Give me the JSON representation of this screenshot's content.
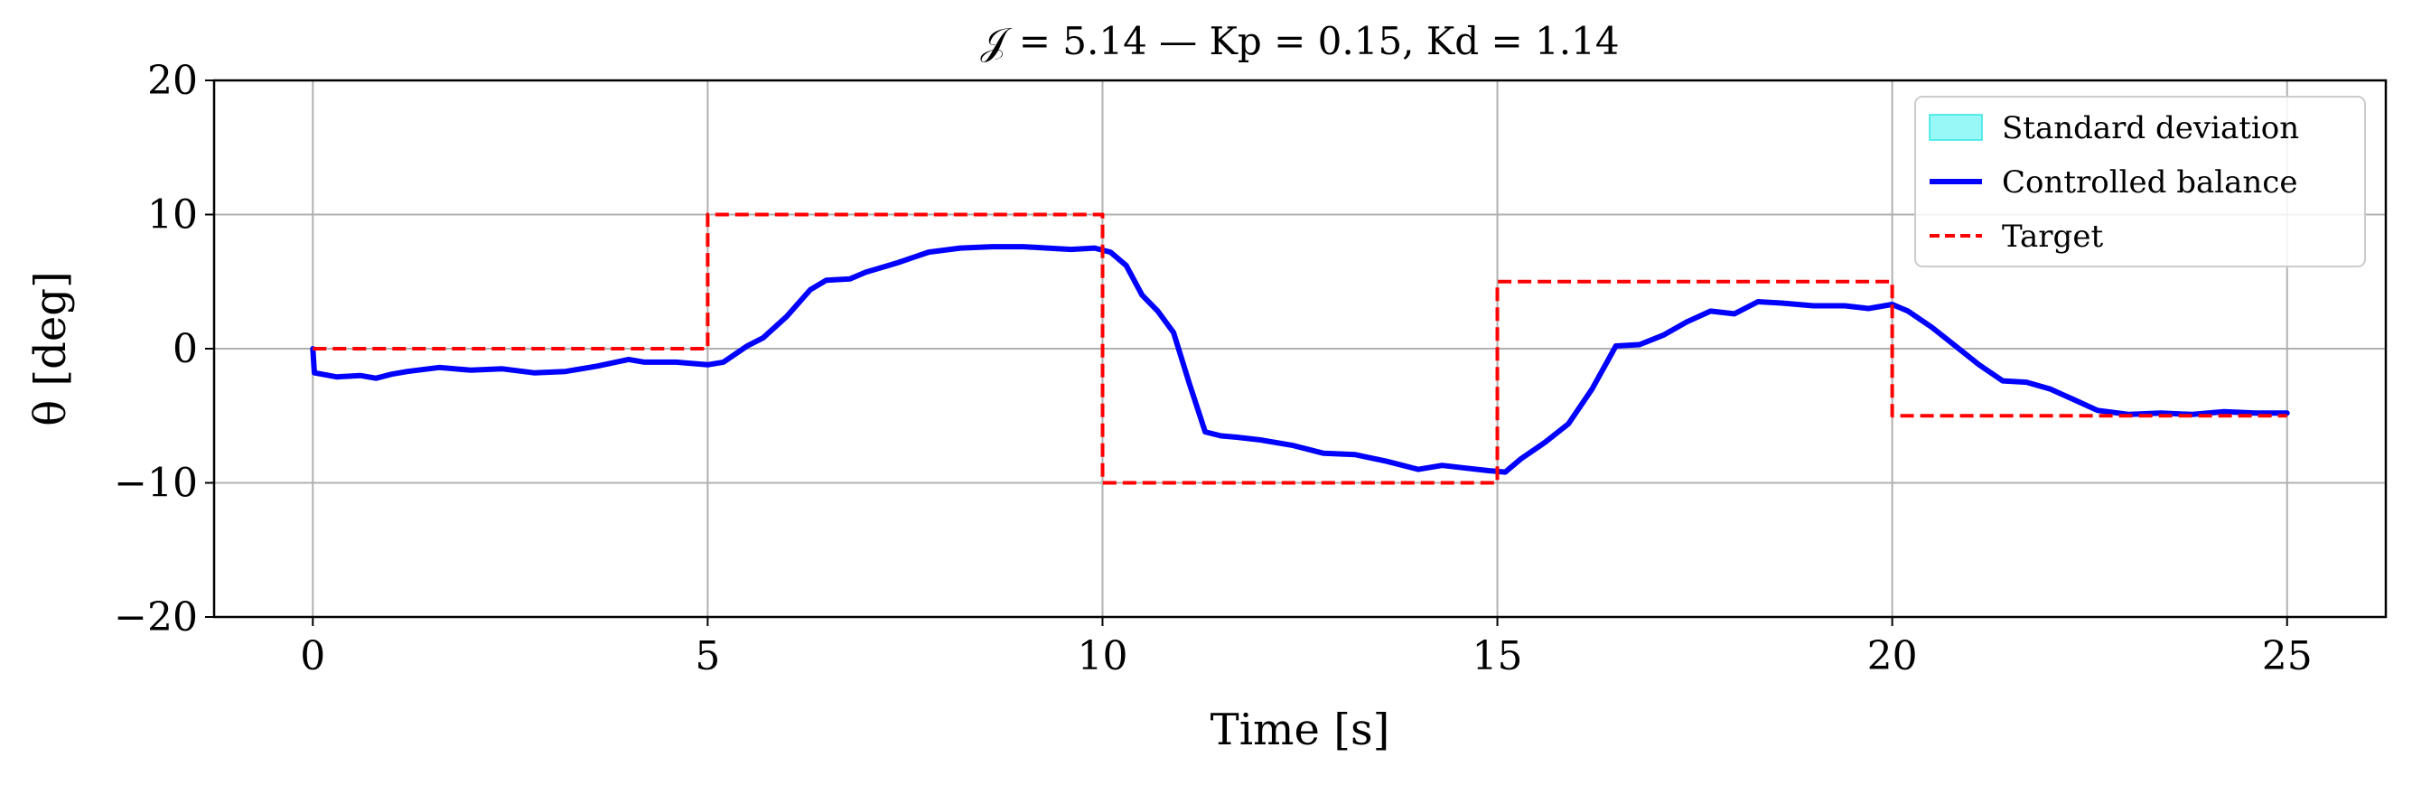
{
  "chart_data": {
    "type": "line",
    "title": "𝒥 = 5.14 — Kp = 0.15, Kd = 1.14",
    "xlabel": "Time [s]",
    "ylabel": "θ [deg]",
    "xlim": [
      -1.25,
      26.25
    ],
    "ylim": [
      -20,
      20
    ],
    "xticks": [
      0,
      5,
      10,
      15,
      20,
      25
    ],
    "yticks": [
      20,
      10,
      0,
      -10,
      -20
    ],
    "xtick_labels": [
      "0",
      "5",
      "10",
      "15",
      "20",
      "25"
    ],
    "ytick_labels": [
      "20",
      "10",
      "0",
      "−10",
      "−20"
    ],
    "grid": true,
    "legend_position": "top-right",
    "series": [
      {
        "name": "Standard deviation",
        "kind": "band",
        "color": "#7ff7f7",
        "x": [],
        "lower": [],
        "upper": []
      },
      {
        "name": "Controlled balance",
        "kind": "line",
        "color": "#0000ff",
        "style": "solid",
        "x": [
          0,
          0.02,
          0.3,
          0.6,
          0.8,
          1.0,
          1.2,
          1.6,
          2.0,
          2.4,
          2.8,
          3.2,
          3.6,
          4.0,
          4.2,
          4.6,
          5.0,
          5.2,
          5.5,
          5.7,
          6.0,
          6.3,
          6.5,
          6.8,
          7.0,
          7.4,
          7.8,
          8.2,
          8.6,
          9.0,
          9.3,
          9.6,
          9.9,
          10.1,
          10.3,
          10.5,
          10.7,
          10.9,
          11.1,
          11.3,
          11.5,
          11.7,
          12.0,
          12.4,
          12.8,
          13.2,
          13.6,
          14.0,
          14.3,
          14.6,
          14.9,
          15.1,
          15.3,
          15.6,
          15.9,
          16.2,
          16.5,
          16.8,
          17.1,
          17.4,
          17.7,
          18.0,
          18.3,
          18.6,
          19.0,
          19.4,
          19.7,
          20.0,
          20.2,
          20.5,
          20.8,
          21.1,
          21.4,
          21.7,
          22.0,
          22.3,
          22.6,
          23.0,
          23.4,
          23.8,
          24.2,
          24.6,
          25.0
        ],
        "y": [
          0,
          -1.8,
          -2.1,
          -2.0,
          -2.2,
          -1.9,
          -1.7,
          -1.4,
          -1.6,
          -1.5,
          -1.8,
          -1.7,
          -1.3,
          -0.8,
          -1.0,
          -1.0,
          -1.2,
          -1.0,
          0.2,
          0.8,
          2.4,
          4.4,
          5.1,
          5.2,
          5.7,
          6.4,
          7.2,
          7.5,
          7.6,
          7.6,
          7.5,
          7.4,
          7.5,
          7.2,
          6.2,
          4.0,
          2.8,
          1.2,
          -2.6,
          -6.2,
          -6.5,
          -6.6,
          -6.8,
          -7.2,
          -7.8,
          -7.9,
          -8.4,
          -9.0,
          -8.7,
          -8.9,
          -9.1,
          -9.2,
          -8.2,
          -7.0,
          -5.6,
          -3.0,
          0.2,
          0.3,
          1.0,
          2.0,
          2.8,
          2.6,
          3.5,
          3.4,
          3.2,
          3.2,
          3.0,
          3.3,
          2.8,
          1.6,
          0.2,
          -1.2,
          -2.4,
          -2.5,
          -3.0,
          -3.8,
          -4.6,
          -4.9,
          -4.8,
          -4.9,
          -4.7,
          -4.8,
          -4.8
        ]
      },
      {
        "name": "Target",
        "kind": "line",
        "color": "#ff0000",
        "style": "dashed",
        "x": [
          0,
          5,
          5,
          10,
          10,
          15,
          15,
          20,
          20,
          25
        ],
        "y": [
          0,
          0,
          10,
          10,
          -10,
          -10,
          5,
          5,
          -5,
          -5
        ]
      }
    ]
  }
}
